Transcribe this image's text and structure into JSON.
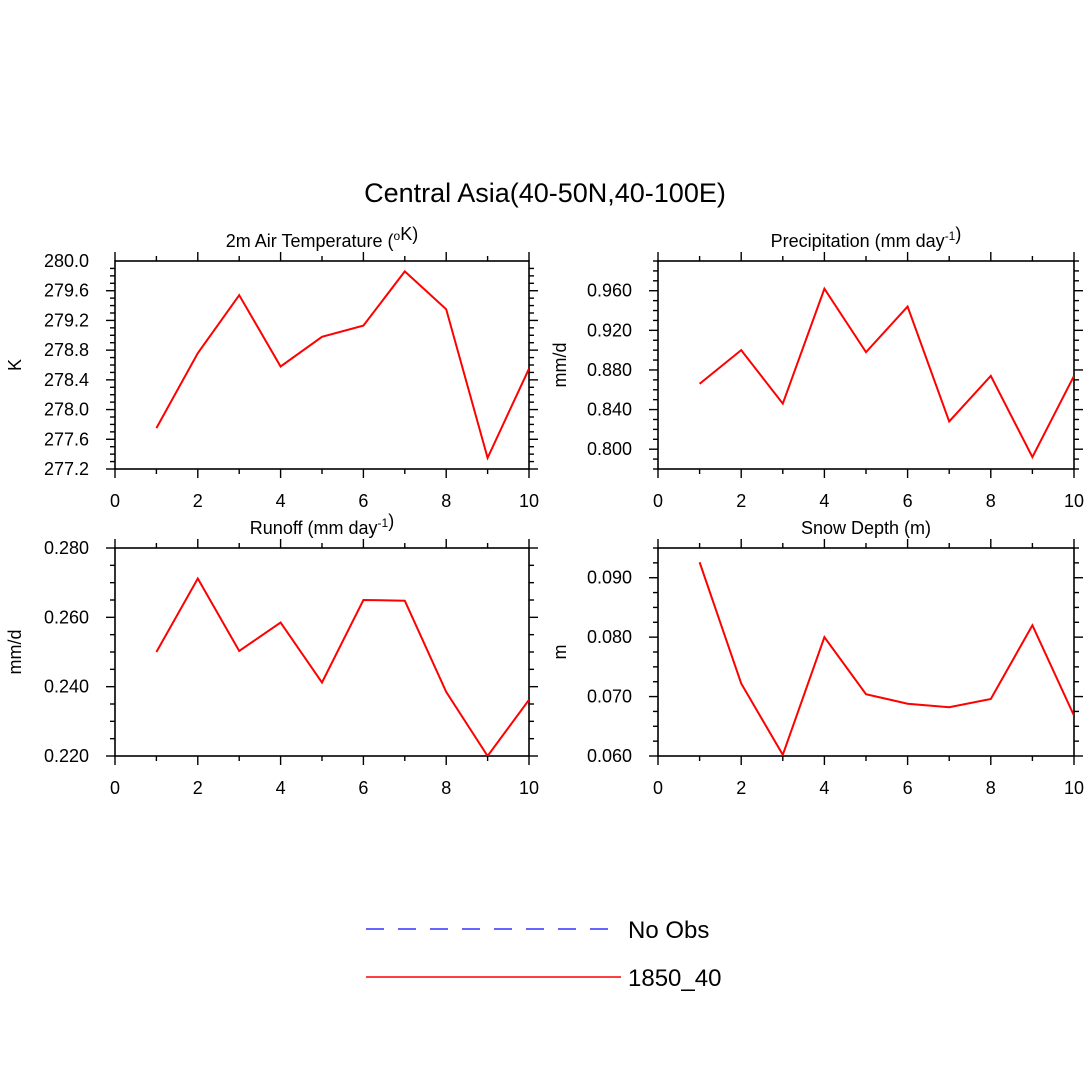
{
  "figure": {
    "title": "Central Asia(40-50N,40-100E)",
    "legend": [
      {
        "name": "No Obs",
        "color": "#3333ff",
        "dash": true
      },
      {
        "name": "1850_40",
        "color": "#ff0000",
        "dash": false
      }
    ]
  },
  "chart_data": [
    {
      "type": "line",
      "title": "2m Air Temperature (oK)",
      "title_parts": [
        {
          "t": "2m Air Temperature ("
        },
        {
          "t": "o",
          "sup": true
        },
        {
          "t": "K)"
        }
      ],
      "xlabel": "",
      "ylabel": "K",
      "xlim": [
        0,
        10
      ],
      "ylim": [
        277.2,
        280.0
      ],
      "xticks": [
        0,
        2,
        4,
        6,
        8,
        10
      ],
      "yticks": [
        "277.2",
        "277.6",
        "278.0",
        "278.4",
        "278.8",
        "279.2",
        "279.6",
        "280.0"
      ],
      "series": [
        {
          "name": "1850_40",
          "color": "#ff0000",
          "x": [
            1,
            2,
            3,
            4,
            5,
            6,
            7,
            8,
            9,
            10
          ],
          "y": [
            277.75,
            278.76,
            279.54,
            278.58,
            278.98,
            279.13,
            279.86,
            279.35,
            277.35,
            278.55
          ]
        }
      ]
    },
    {
      "type": "line",
      "title": "Precipitation (mm day-1)",
      "title_parts": [
        {
          "t": "Precipitation (mm day"
        },
        {
          "t": "-1",
          "sup": true
        },
        {
          "t": ")"
        }
      ],
      "xlabel": "",
      "ylabel": "mm/d",
      "xlim": [
        0,
        10
      ],
      "ylim": [
        0.78,
        0.99
      ],
      "xticks": [
        0,
        2,
        4,
        6,
        8,
        10
      ],
      "yticks": [
        "0.800",
        "0.840",
        "0.880",
        "0.920",
        "0.960"
      ],
      "series": [
        {
          "name": "1850_40",
          "color": "#ff0000",
          "x": [
            1,
            2,
            3,
            4,
            5,
            6,
            7,
            8,
            9,
            10
          ],
          "y": [
            0.866,
            0.9,
            0.846,
            0.962,
            0.898,
            0.944,
            0.828,
            0.874,
            0.792,
            0.874
          ]
        }
      ]
    },
    {
      "type": "line",
      "title": "Runoff (mm day-1)",
      "title_parts": [
        {
          "t": "Runoff (mm day"
        },
        {
          "t": "-1",
          "sup": true
        },
        {
          "t": ")"
        }
      ],
      "xlabel": "",
      "ylabel": "mm/d",
      "xlim": [
        0,
        10
      ],
      "ylim": [
        0.22,
        0.28
      ],
      "xticks": [
        0,
        2,
        4,
        6,
        8,
        10
      ],
      "yticks": [
        "0.220",
        "0.240",
        "0.260",
        "0.280"
      ],
      "series": [
        {
          "name": "1850_40",
          "color": "#ff0000",
          "x": [
            1,
            2,
            3,
            4,
            5,
            6,
            7,
            8,
            9,
            10
          ],
          "y": [
            0.25,
            0.2712,
            0.2503,
            0.2585,
            0.2412,
            0.265,
            0.2648,
            0.2385,
            0.22,
            0.2362
          ]
        }
      ]
    },
    {
      "type": "line",
      "title": "Snow Depth (m)",
      "title_parts": [
        {
          "t": "Snow Depth (m)"
        }
      ],
      "xlabel": "",
      "ylabel": "m",
      "xlim": [
        0,
        10
      ],
      "ylim": [
        0.06,
        0.095
      ],
      "xticks": [
        0,
        2,
        4,
        6,
        8,
        10
      ],
      "yticks": [
        "0.060",
        "0.070",
        "0.080",
        "0.090"
      ],
      "series": [
        {
          "name": "1850_40",
          "color": "#ff0000",
          "x": [
            1,
            2,
            3,
            4,
            5,
            6,
            7,
            8,
            9,
            10
          ],
          "y": [
            0.0926,
            0.0722,
            0.0602,
            0.08,
            0.0704,
            0.0688,
            0.0682,
            0.0696,
            0.082,
            0.0668
          ]
        }
      ]
    }
  ]
}
